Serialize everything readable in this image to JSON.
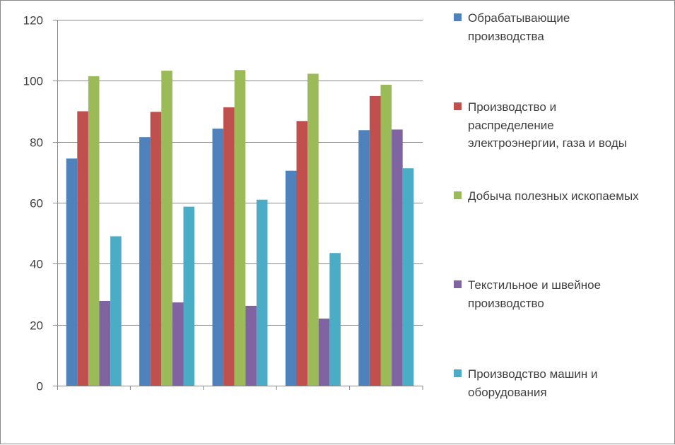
{
  "chart_data": {
    "type": "bar",
    "title": "",
    "xlabel": "",
    "ylabel": "",
    "categories": [
      "",
      "",
      "",
      "",
      ""
    ],
    "ylim": [
      0,
      120
    ],
    "yticks": [
      "0",
      "20",
      "40",
      "60",
      "80",
      "100",
      "120"
    ],
    "grid": true,
    "legend_position": "right",
    "series": [
      {
        "name": "Обрабатывающие производства",
        "color": "#4F81BD",
        "values": [
          74.5,
          81.5,
          84.3,
          70.5,
          83.8
        ]
      },
      {
        "name": "Производство и распределение электроэнергии, газа и воды",
        "color": "#C0504D",
        "values": [
          90.0,
          89.8,
          91.3,
          86.8,
          95.0
        ]
      },
      {
        "name": "Добыча полезных ископаемых",
        "color": "#9BBB59",
        "values": [
          101.5,
          103.3,
          103.5,
          102.3,
          98.7
        ]
      },
      {
        "name": "Текстильное и швейное производство",
        "color": "#8064A2",
        "values": [
          27.8,
          27.3,
          26.2,
          22.0,
          84.0
        ]
      },
      {
        "name": "Производство машин и оборудования",
        "color": "#4BACC6",
        "values": [
          49.0,
          58.7,
          61.0,
          43.5,
          71.3
        ]
      }
    ]
  }
}
